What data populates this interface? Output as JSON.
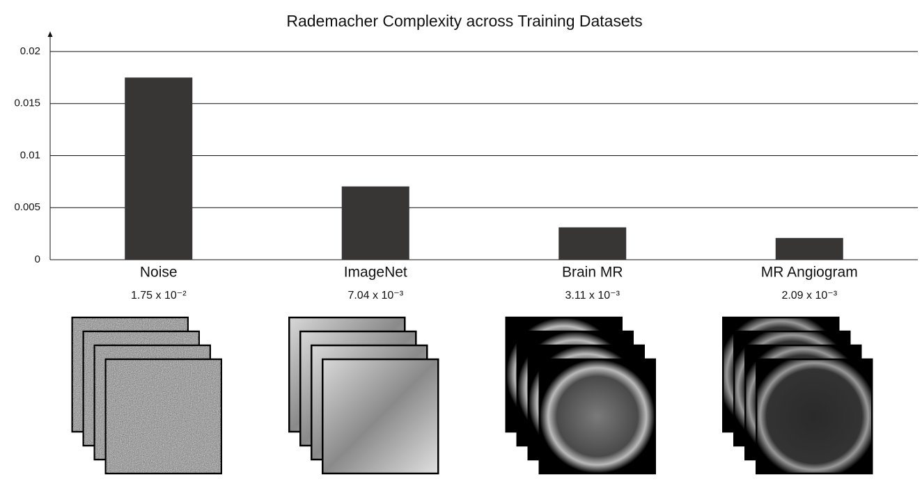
{
  "chart_data": {
    "type": "bar",
    "title": "Rademacher Complexity across Training Datasets",
    "categories": [
      "Noise",
      "ImageNet",
      "Brain MR",
      "MR Angiogram"
    ],
    "values": [
      0.0175,
      0.00704,
      0.00311,
      0.00209
    ],
    "value_labels": [
      "1.75 x 10⁻²",
      "7.04 x 10⁻³",
      "3.11 x 10⁻³",
      "2.09 x 10⁻³"
    ],
    "color": "#383634",
    "ylim": [
      0,
      0.02
    ],
    "yticks": [
      0,
      0.005,
      0.01,
      0.015,
      0.02
    ],
    "grid": true
  }
}
